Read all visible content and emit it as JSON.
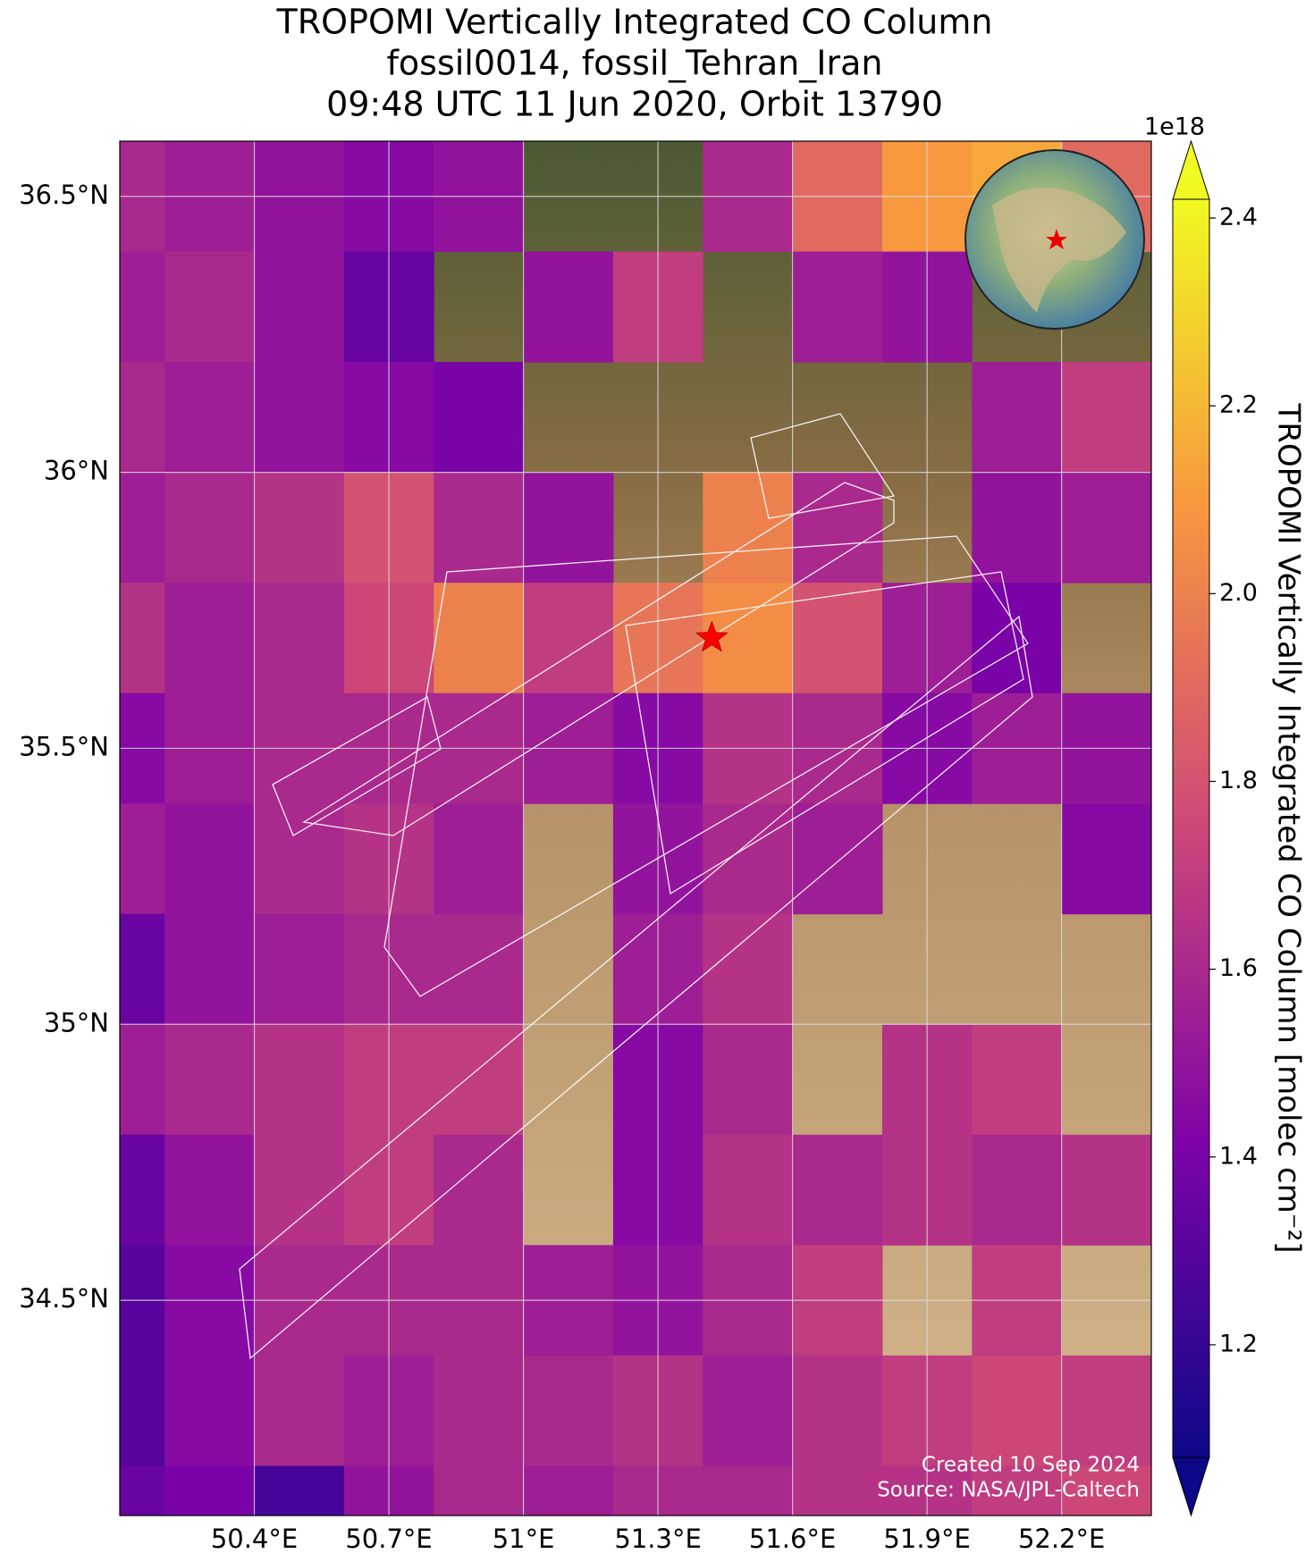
{
  "chart_data": {
    "type": "map",
    "title": [
      "TROPOMI Vertically Integrated CO Column",
      "fossil0014, fossil_Tehran_Iran",
      "09:48 UTC 11 Jun 2020, Orbit 13790"
    ],
    "xlim": [
      50.1,
      52.4
    ],
    "ylim": [
      34.11,
      36.6
    ],
    "xticks": [
      {
        "value": 50.4,
        "label": "50.4°E"
      },
      {
        "value": 50.7,
        "label": "50.7°E"
      },
      {
        "value": 51,
        "label": "51°E"
      },
      {
        "value": 51.3,
        "label": "51.3°E"
      },
      {
        "value": 51.6,
        "label": "51.6°E"
      },
      {
        "value": 51.9,
        "label": "51.9°E"
      },
      {
        "value": 52.2,
        "label": "52.2°E"
      }
    ],
    "yticks": [
      {
        "value": 34.5,
        "label": "34.5°N"
      },
      {
        "value": 35,
        "label": "35°N"
      },
      {
        "value": 35.5,
        "label": "35.5°N"
      },
      {
        "value": 36,
        "label": "36°N"
      },
      {
        "value": 36.5,
        "label": "36.5°N"
      }
    ],
    "grid": true,
    "colormap": "plasma",
    "clim": [
      1.08,
      2.42
    ],
    "colorbar_ticks": [
      1.2,
      1.4,
      1.6,
      1.8,
      {
        "value": 2,
        "label": "2.0"
      },
      2.2,
      2.4
    ],
    "colorbar_exponent": "1e18",
    "colorbar_label": "TROPOMI Vertically Integrated CO Column [molec cm⁻²]",
    "data": {
      "lon": [
        50.1,
        50.3,
        50.5,
        50.7,
        50.9,
        51.1,
        51.3,
        51.5,
        51.7,
        51.9,
        52.1,
        52.3
      ],
      "lat": [
        36.5,
        36.3,
        36.1,
        35.9,
        35.7,
        35.5,
        35.3,
        35.1,
        34.9,
        34.7,
        34.5,
        34.3,
        34.1
      ],
      "values": [
        [
          1.6,
          1.55,
          1.5,
          1.45,
          1.5,
          null,
          null,
          1.6,
          1.9,
          2.1,
          2.15,
          1.9
        ],
        [
          1.55,
          1.6,
          1.5,
          1.35,
          null,
          1.5,
          1.7,
          null,
          1.55,
          1.5,
          null,
          null
        ],
        [
          1.6,
          1.55,
          1.5,
          1.45,
          1.4,
          null,
          null,
          null,
          null,
          null,
          1.55,
          1.7
        ],
        [
          1.55,
          1.6,
          1.65,
          1.8,
          1.6,
          1.5,
          null,
          2.0,
          1.6,
          null,
          1.5,
          1.55
        ],
        [
          1.65,
          1.55,
          1.6,
          1.75,
          2.0,
          1.7,
          1.95,
          2.05,
          1.8,
          1.55,
          1.4,
          null
        ],
        [
          1.45,
          1.55,
          1.6,
          1.6,
          1.6,
          1.55,
          1.45,
          1.65,
          1.6,
          1.45,
          1.55,
          1.5
        ],
        [
          1.55,
          1.5,
          1.6,
          1.65,
          1.55,
          null,
          1.5,
          1.6,
          1.55,
          null,
          null,
          1.45
        ],
        [
          1.35,
          1.5,
          1.55,
          1.6,
          1.6,
          null,
          1.55,
          1.65,
          null,
          null,
          null,
          null
        ],
        [
          1.55,
          1.6,
          1.65,
          1.7,
          1.7,
          null,
          1.45,
          1.6,
          null,
          1.65,
          1.7,
          null
        ],
        [
          1.35,
          1.5,
          1.65,
          1.7,
          1.6,
          null,
          1.45,
          1.65,
          1.6,
          1.65,
          1.6,
          1.65
        ],
        [
          1.3,
          1.45,
          1.6,
          1.6,
          1.6,
          1.55,
          1.5,
          1.6,
          1.7,
          null,
          1.7,
          null
        ],
        [
          1.3,
          1.45,
          1.6,
          1.55,
          1.6,
          1.6,
          1.65,
          1.55,
          1.65,
          1.7,
          1.75,
          1.7
        ],
        [
          1.35,
          1.4,
          1.25,
          1.5,
          1.6,
          1.55,
          1.6,
          1.6,
          1.65,
          1.65,
          1.7,
          1.75
        ]
      ]
    },
    "site": {
      "lon": 51.42,
      "lat": 35.7
    },
    "footer": [
      "Created 10 Sep 2024",
      "Source: NASA/JPL-Caltech"
    ]
  }
}
